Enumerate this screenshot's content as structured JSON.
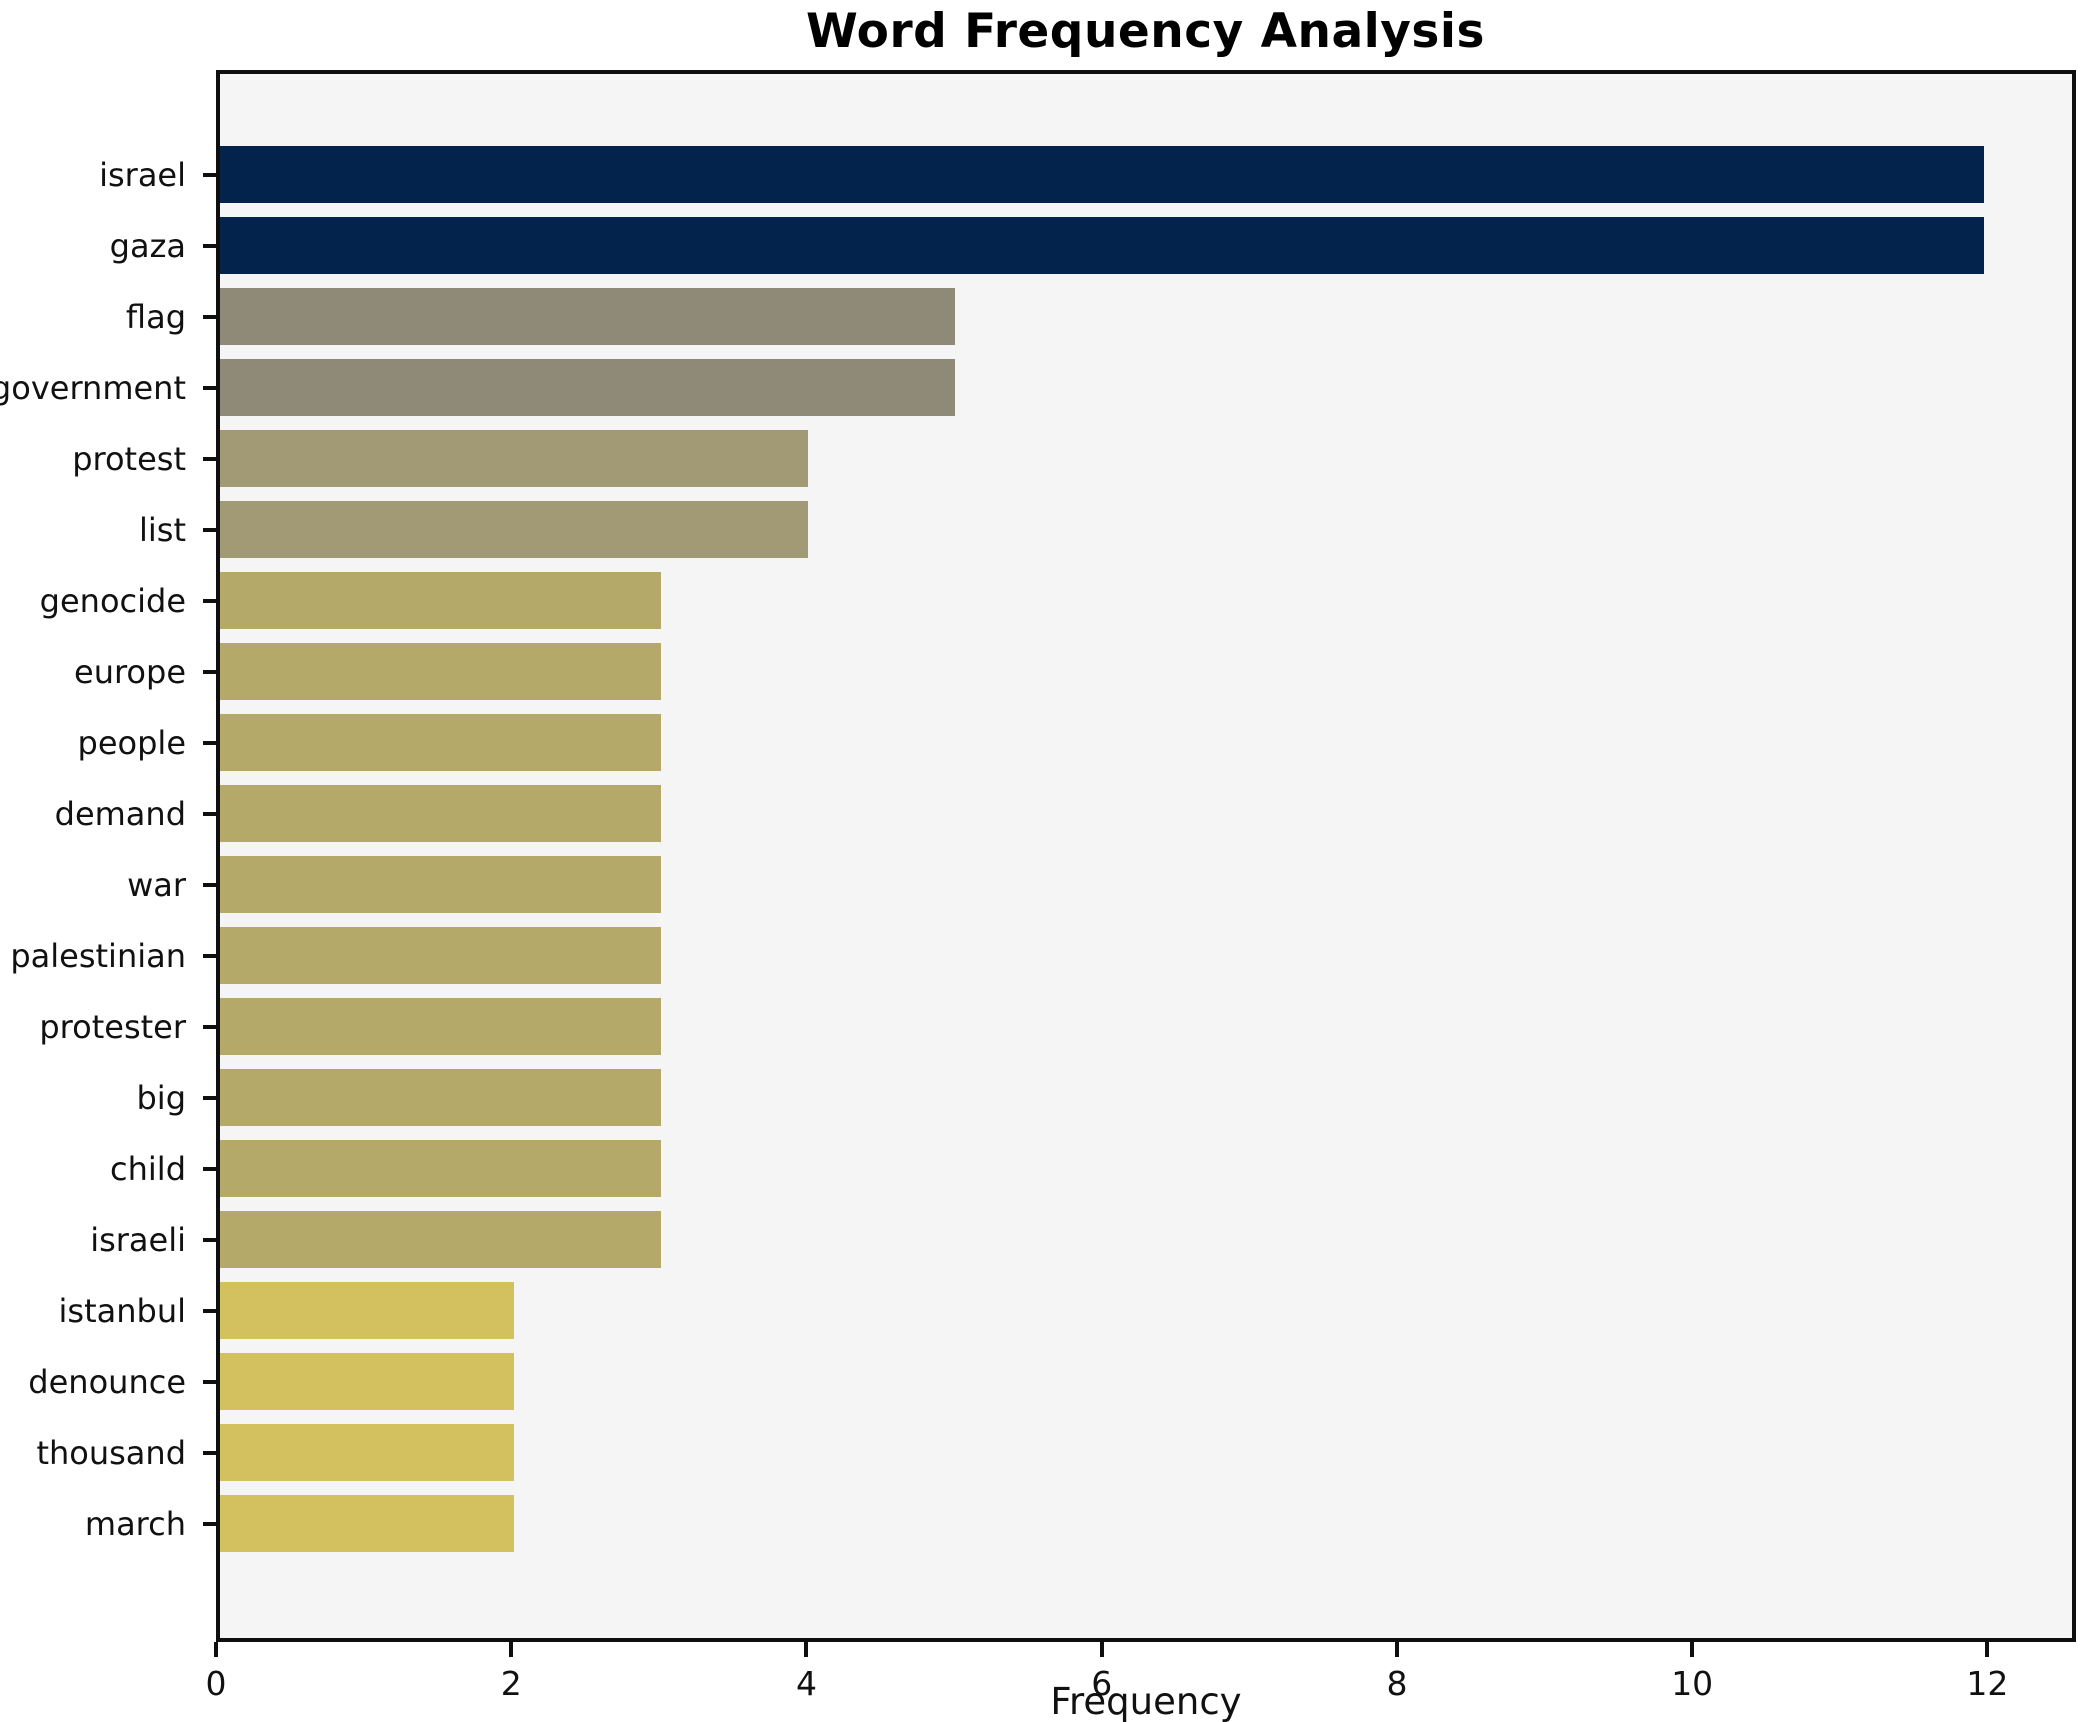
{
  "title": "Word Frequency Analysis",
  "chart_data": {
    "type": "bar",
    "orientation": "horizontal",
    "title": "Word Frequency Analysis",
    "xlabel": "Frequency",
    "ylabel": "",
    "categories": [
      "israel",
      "gaza",
      "flag",
      "government",
      "protest",
      "list",
      "genocide",
      "europe",
      "people",
      "demand",
      "war",
      "palestinian",
      "protester",
      "big",
      "child",
      "israeli",
      "istanbul",
      "denounce",
      "thousand",
      "march"
    ],
    "values": [
      12,
      12,
      5,
      5,
      4,
      4,
      3,
      3,
      3,
      3,
      3,
      3,
      3,
      3,
      3,
      3,
      2,
      2,
      2,
      2
    ],
    "bar_colors": [
      "#03234d",
      "#03234d",
      "#8f8a77",
      "#8f8a77",
      "#a29a74",
      "#a29a74",
      "#b4a968",
      "#b4a968",
      "#b4a968",
      "#b4a968",
      "#b4a968",
      "#b4a968",
      "#b4a968",
      "#b4a968",
      "#b4a968",
      "#b4a968",
      "#d3c05f",
      "#d3c05f",
      "#d3c05f",
      "#d3c05f"
    ],
    "xticks": [
      0,
      2,
      4,
      6,
      8,
      10,
      12
    ],
    "xlim": [
      0,
      12.6
    ],
    "grid": false,
    "legend_position": "none",
    "plot_background": "#f5f5f6",
    "figure_background": "#ffffff",
    "spine_color": "#0f0f0f"
  }
}
